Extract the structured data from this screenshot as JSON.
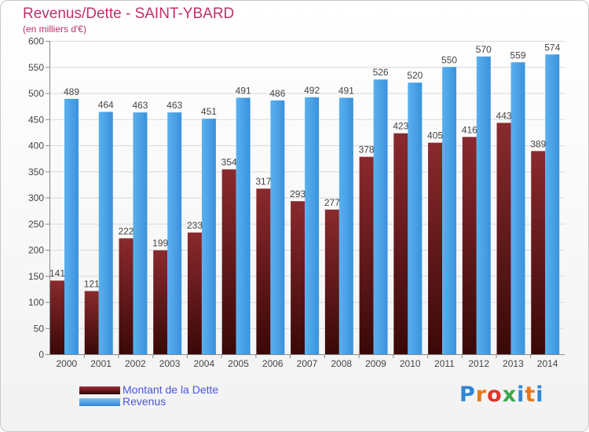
{
  "header": {
    "title": "Revenus/Dette - SAINT-YBARD",
    "subtitle": "(en milliers d'€)"
  },
  "chart_data": {
    "type": "bar",
    "categories": [
      "2000",
      "2001",
      "2002",
      "2003",
      "2004",
      "2005",
      "2006",
      "2007",
      "2008",
      "2009",
      "2010",
      "2011",
      "2012",
      "2013",
      "2014"
    ],
    "series": [
      {
        "name": "Montant de la Dette",
        "color": "#7a1f22",
        "values": [
          141,
          121,
          222,
          199,
          233,
          354,
          317,
          293,
          277,
          378,
          423,
          405,
          416,
          443,
          389
        ]
      },
      {
        "name": "Revenus",
        "color": "#4aa3e6",
        "values": [
          489,
          464,
          463,
          463,
          451,
          491,
          486,
          492,
          491,
          526,
          520,
          550,
          570,
          559,
          574
        ]
      }
    ],
    "ylim": [
      0,
      600
    ],
    "yticks": [
      0,
      50,
      100,
      150,
      200,
      250,
      300,
      350,
      400,
      450,
      500,
      550,
      600
    ],
    "grid": true,
    "legend_placement": "bottom-left"
  },
  "legend": {
    "items": [
      {
        "label": "Montant de la Dette",
        "color": "#5a1416"
      },
      {
        "label": "Revenus",
        "color": "#4aa3e6"
      }
    ]
  },
  "logo": {
    "letters": [
      "P",
      "r",
      "o",
      "x",
      "i",
      "t",
      "i"
    ]
  }
}
